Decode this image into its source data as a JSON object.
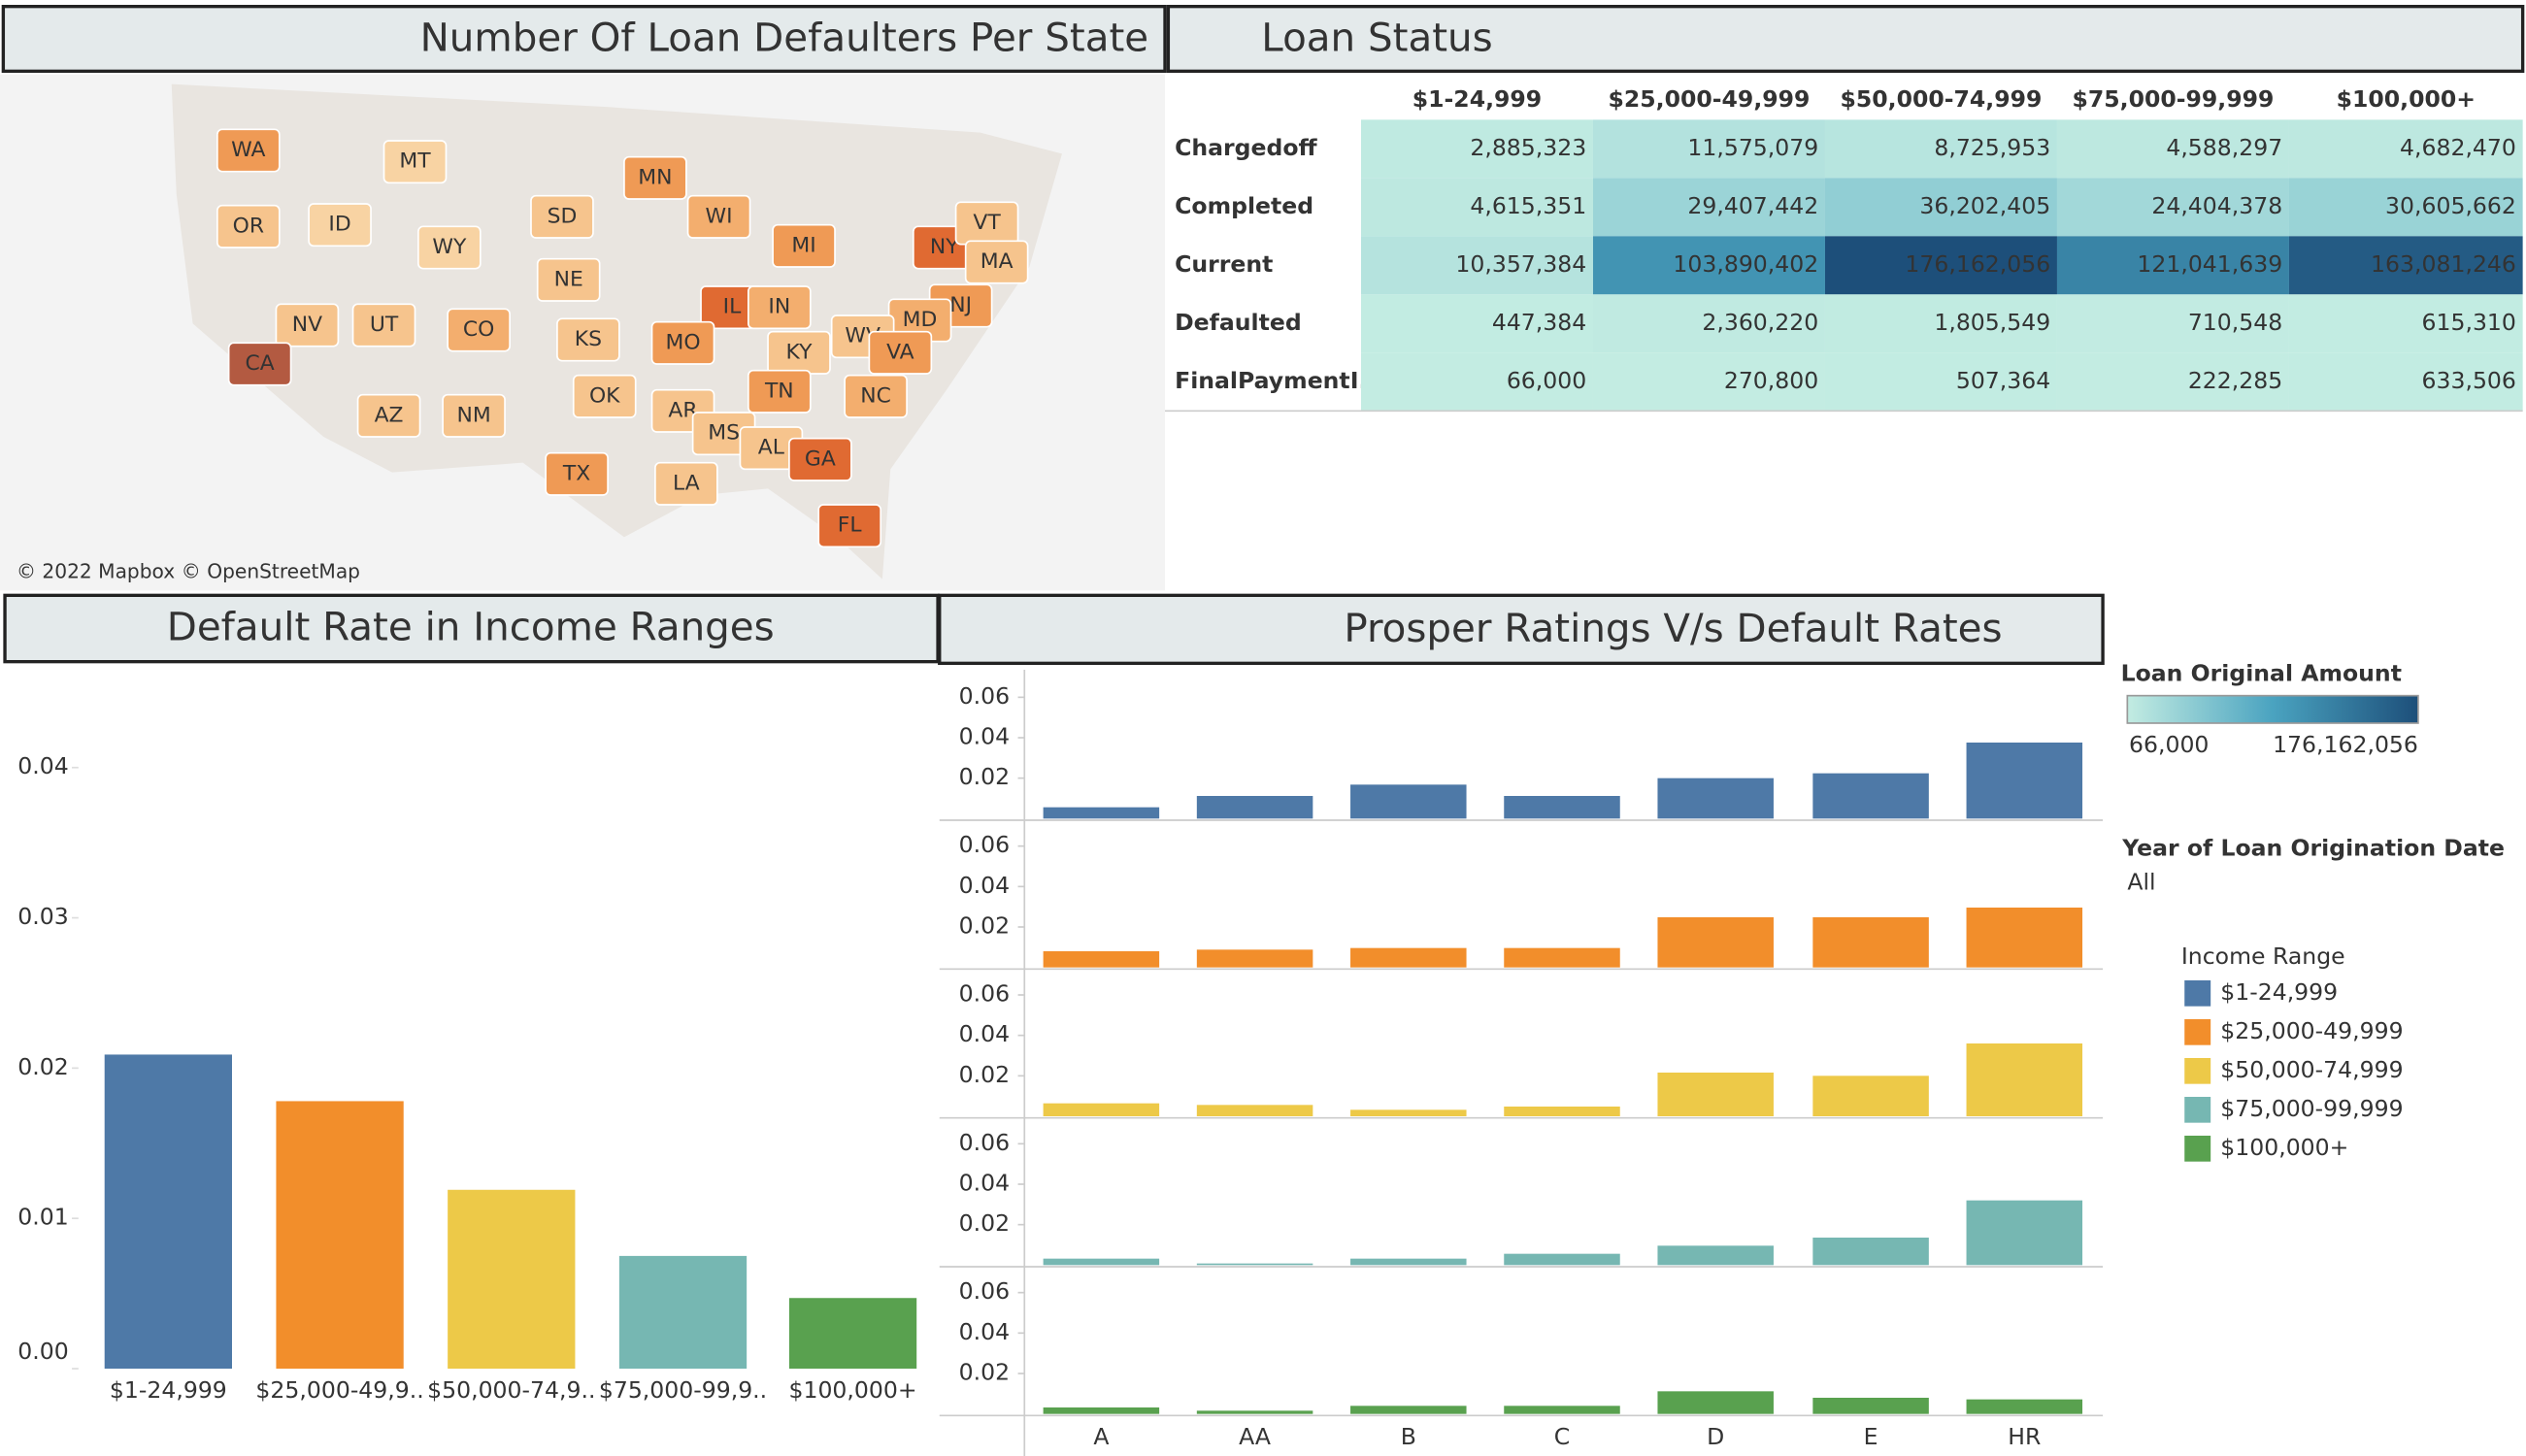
{
  "chart_data": [
    {
      "type": "map",
      "title": "Number Of  Loan Defaulters Per State",
      "attribution": "© 2022 Mapbox © OpenStreetMap",
      "states": [
        "WA",
        "MT",
        "OR",
        "ID",
        "WY",
        "SD",
        "MN",
        "WI",
        "MI",
        "NY",
        "VT",
        "MA",
        "NE",
        "IL",
        "IN",
        "NJ",
        "MD",
        "NV",
        "UT",
        "CO",
        "KS",
        "MO",
        "KY",
        "WV",
        "VA",
        "CA",
        "AZ",
        "NM",
        "OK",
        "AR",
        "TN",
        "NC",
        "MS",
        "AL",
        "GA",
        "TX",
        "LA",
        "FL"
      ],
      "colors": [
        "#ef9a55",
        "#f8d3a3",
        "#f6c48d",
        "#f8d3a3",
        "#f8d3a3",
        "#f6c48d",
        "#ef9a55",
        "#f3ae6e",
        "#ef9a55",
        "#e06a32",
        "#f6c48d",
        "#f6c48d",
        "#f6c48d",
        "#e06a32",
        "#f3ae6e",
        "#ef9a55",
        "#f3ae6e",
        "#f6c48d",
        "#f6c48d",
        "#f3ae6e",
        "#f6c48d",
        "#ef9a55",
        "#f6c48d",
        "#f6c48d",
        "#ef9a55",
        "#b35a41",
        "#f6c48d",
        "#f6c48d",
        "#f6c48d",
        "#f6c48d",
        "#ef9a55",
        "#f3ae6e",
        "#f6c48d",
        "#f6c48d",
        "#e06a32",
        "#ef9a55",
        "#f6c48d",
        "#e06a32"
      ]
    },
    {
      "type": "table",
      "title": "Loan Status",
      "columns": [
        "$1-24,999",
        "$25,000-49,999",
        "$50,000-74,999",
        "$75,000-99,999",
        "$100,000+"
      ],
      "rows": [
        {
          "label": "Chargedoff",
          "values": [
            "2,885,323",
            "11,575,079",
            "8,725,953",
            "4,588,297",
            "4,682,470"
          ]
        },
        {
          "label": "Completed",
          "values": [
            "4,615,351",
            "29,407,442",
            "36,202,405",
            "24,404,378",
            "30,605,662"
          ]
        },
        {
          "label": "Current",
          "values": [
            "10,357,384",
            "103,890,402",
            "176,162,056",
            "121,041,639",
            "163,081,246"
          ]
        },
        {
          "label": "Defaulted",
          "values": [
            "447,384",
            "2,360,220",
            "1,805,549",
            "710,548",
            "615,310"
          ]
        },
        {
          "label": "FinalPaymentI..",
          "values": [
            "66,000",
            "270,800",
            "507,364",
            "222,285",
            "633,506"
          ]
        }
      ],
      "color_legend": {
        "title": "Loan Original Amount",
        "min": "66,000",
        "max": "176,162,056"
      }
    },
    {
      "type": "bar",
      "title": "Default Rate in Income Ranges",
      "categories": [
        "$1-24,999",
        "$25,000-49,9..",
        "$50,000-74,9..",
        "$75,000-99,9..",
        "$100,000+"
      ],
      "values": [
        0.0209,
        0.0178,
        0.0119,
        0.0075,
        0.0047
      ],
      "colors": [
        "#4e79a7",
        "#f28e2b",
        "#edc948",
        "#76b7b2",
        "#59a14f"
      ],
      "ylim": [
        0,
        0.0464
      ],
      "yticks": [
        {
          "value": 0,
          "label": "0.00"
        },
        0.01,
        0.02,
        0.03,
        0.04
      ]
    },
    {
      "type": "panel-bar",
      "title": "Prosper Ratings V/s Default Rates",
      "categories": [
        "A",
        "AA",
        "B",
        "C",
        "D",
        "E",
        "HR"
      ],
      "ylim": [
        0,
        0.072
      ],
      "yticks": [
        0.02,
        0.04,
        0.06
      ],
      "legend_title": "Income Range",
      "series": [
        {
          "name": "$1-24,999",
          "color": "#4e79a7",
          "values": [
            0.0056,
            0.0112,
            0.0168,
            0.0112,
            0.02,
            0.0224,
            0.0376
          ]
        },
        {
          "name": "$25,000-49,999",
          "color": "#f28e2b",
          "values": [
            0.008,
            0.0088,
            0.0096,
            0.0096,
            0.0248,
            0.0248,
            0.0296
          ]
        },
        {
          "name": "$50,000-74,999",
          "color": "#edc948",
          "values": [
            0.0064,
            0.0056,
            0.0032,
            0.0048,
            0.0216,
            0.02,
            0.036
          ]
        },
        {
          "name": "$75,000-99,999",
          "color": "#76b7b2",
          "values": [
            0.0032,
            0.0008,
            0.0032,
            0.0056,
            0.0096,
            0.0136,
            0.032
          ]
        },
        {
          "name": "$100,000+",
          "color": "#59a14f",
          "values": [
            0.0032,
            0.0016,
            0.004,
            0.004,
            0.0112,
            0.008,
            0.0072
          ]
        }
      ],
      "filter": {
        "title": "Year of Loan Origination Date",
        "value": "All"
      }
    }
  ]
}
